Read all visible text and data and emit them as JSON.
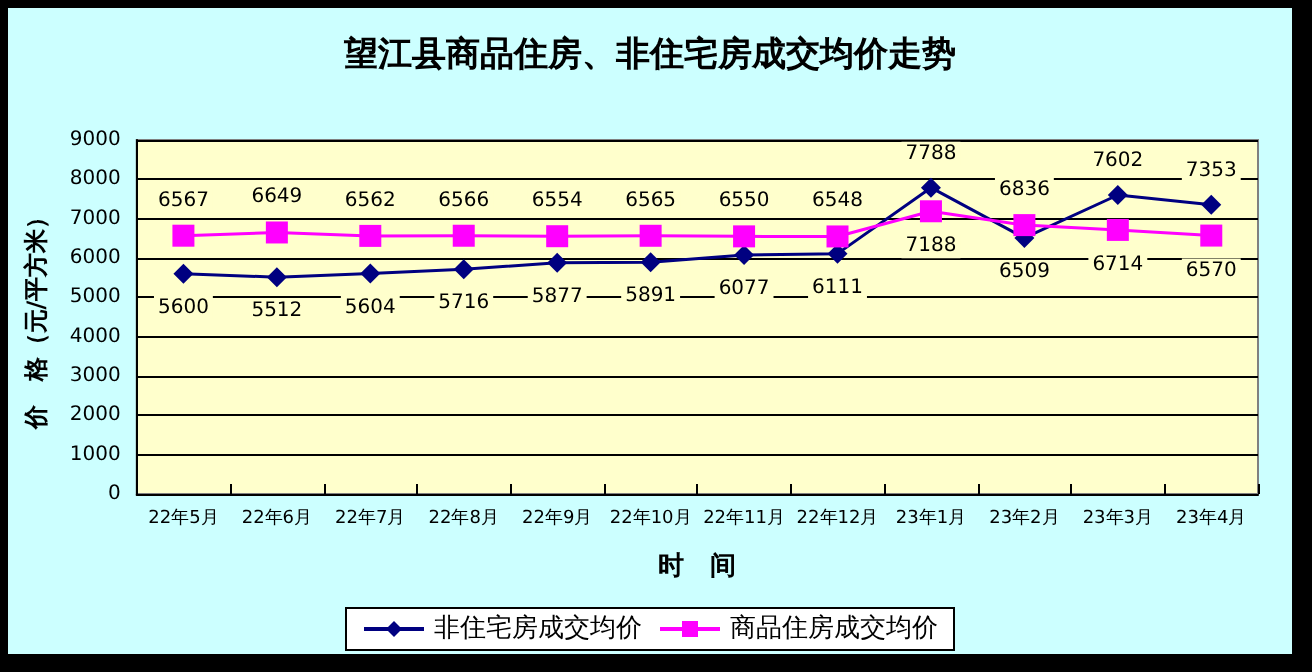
{
  "chart_data": {
    "type": "line",
    "title": "望江县商品住房、非住宅房成交均价走势",
    "xlabel": "时　间",
    "ylabel": "价　格（元/平方米）",
    "categories": [
      "22年5月",
      "22年6月",
      "22年7月",
      "22年8月",
      "22年9月",
      "22年10月",
      "22年11月",
      "22年12月",
      "23年1月",
      "23年2月",
      "23年3月",
      "23年4月"
    ],
    "series": [
      {
        "name": "非住宅房成交均价",
        "color": "#000080",
        "marker": "diamond",
        "values": [
          5600,
          5512,
          5604,
          5716,
          5877,
          5891,
          6077,
          6111,
          7788,
          6509,
          7602,
          7353
        ]
      },
      {
        "name": "商品住房成交均价",
        "color": "#ff00ff",
        "marker": "square",
        "values": [
          6567,
          6649,
          6562,
          6566,
          6554,
          6565,
          6550,
          6548,
          7188,
          6836,
          6714,
          6570
        ]
      }
    ],
    "ylim": [
      0,
      9000
    ],
    "yticks": [
      0,
      1000,
      2000,
      3000,
      4000,
      5000,
      6000,
      7000,
      8000,
      9000
    ],
    "grid": "y",
    "legend": "bottom",
    "data_labels": true
  }
}
